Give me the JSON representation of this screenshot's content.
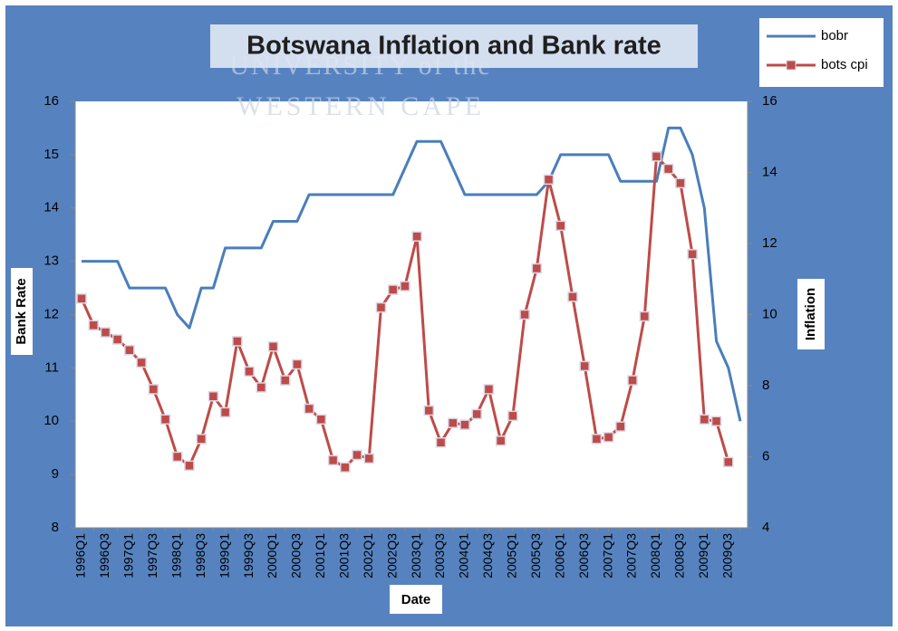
{
  "watermark": [
    "UNIVERSITY of the",
    "WESTERN CAPE"
  ],
  "chart_data": {
    "type": "line",
    "title": "Botswana Inflation and Bank rate",
    "x_label": "Date",
    "y_label": "Bank Rate",
    "y2_label": "Inflation",
    "categories": [
      "1996Q1",
      null,
      "1996Q3",
      null,
      "1997Q1",
      null,
      "1997Q3",
      null,
      "1998Q1",
      null,
      "1998Q3",
      null,
      "1999Q1",
      null,
      "1999Q3",
      null,
      "2000Q1",
      null,
      "2000Q3",
      null,
      "2001Q1",
      null,
      "2001Q3",
      null,
      "2002Q1",
      null,
      "2002Q3",
      null,
      "2003Q1",
      null,
      "2003Q3",
      null,
      "2004Q1",
      null,
      "2004Q3",
      null,
      "2005Q1",
      null,
      "2005Q3",
      null,
      "2006Q1",
      null,
      "2006Q3",
      null,
      "2007Q1",
      null,
      "2007Q3",
      null,
      "2008Q1",
      null,
      "2008Q3",
      null,
      "2009Q1",
      null,
      "2009Q3",
      null
    ],
    "series": [
      {
        "name": "bobr",
        "color": "#4a7ebb",
        "axis": "y",
        "values": [
          13,
          13,
          13,
          13,
          12.5,
          12.5,
          12.5,
          12.5,
          12,
          11.75,
          12.5,
          12.5,
          13.25,
          13.25,
          13.25,
          13.25,
          13.75,
          13.75,
          13.75,
          14.25,
          14.25,
          14.25,
          14.25,
          14.25,
          14.25,
          14.25,
          14.25,
          14.75,
          15.25,
          15.25,
          15.25,
          14.75,
          14.25,
          14.25,
          14.25,
          14.25,
          14.25,
          14.25,
          14.25,
          14.5,
          15,
          15,
          15,
          15,
          15,
          14.5,
          14.5,
          14.5,
          14.5,
          15.5,
          15.5,
          15,
          14,
          11.5,
          11,
          10
        ]
      },
      {
        "name": "bots cpi",
        "color": "#be4b48",
        "axis": "y2",
        "marker": "square",
        "values": [
          10.45,
          9.7,
          9.5,
          9.3,
          9.0,
          8.65,
          7.9,
          7.05,
          6.0,
          5.75,
          6.5,
          7.7,
          7.25,
          9.25,
          8.4,
          7.95,
          9.1,
          8.15,
          8.6,
          7.35,
          7.05,
          5.9,
          5.7,
          6.05,
          5.95,
          10.2,
          10.7,
          10.8,
          12.2,
          7.3,
          6.4,
          6.95,
          6.9,
          7.2,
          7.9,
          6.45,
          7.15,
          10.0,
          11.3,
          13.8,
          12.5,
          10.5,
          8.55,
          6.5,
          6.55,
          6.85,
          8.15,
          9.95,
          14.45,
          14.1,
          13.7,
          11.7,
          7.05,
          7.0,
          5.85,
          null
        ]
      }
    ],
    "ylim": [
      8,
      16
    ],
    "yticks": [
      8,
      9,
      10,
      11,
      12,
      13,
      14,
      15,
      16
    ],
    "y2lim": [
      4,
      16
    ],
    "y2ticks": [
      4,
      6,
      8,
      10,
      12,
      14,
      16
    ],
    "legend": "top-right",
    "grid": false
  }
}
